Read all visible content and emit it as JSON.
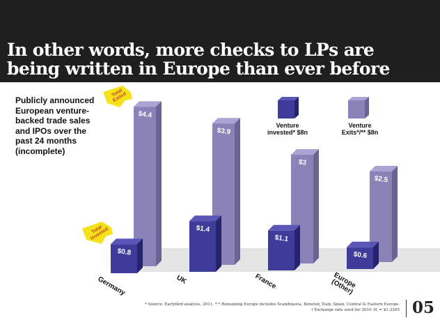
{
  "title": {
    "line1": "In other words, more checks to LPs are",
    "line2": "being written in Europe than ever before"
  },
  "side_text": "Publicly announced European venture-backed trade sales and IPOs over the past 24 months (incomplete)",
  "legend": {
    "invested": "Venture invested* $8n",
    "exits": "Venture Exits*/** $8n"
  },
  "callouts": {
    "total_exited": "Total Exited",
    "total_invested": "Total Invested"
  },
  "footnote": {
    "line1": "* Source: Earlybird analysis, 2011. * * Remaining Europe includes Scandinavia, Benelux, Italy, Spain, Central & Eastern Europe.",
    "line2": "† Exchange rate used for 2010 1€ = $1.3265"
  },
  "page_number": "05",
  "colors": {
    "invested_front": "#3e3b9a",
    "invested_side": "#26236e",
    "invested_top": "#5a56b8",
    "exits_front": "#8b82b8",
    "exits_side": "#6b6394",
    "exits_top": "#aba3d2",
    "callout_yellow": "#f5e21d",
    "header_bg": "#1f1f1f"
  },
  "chart_data": {
    "type": "bar",
    "categories": [
      "Germany",
      "UK",
      "France",
      "Europe (Other)"
    ],
    "series": [
      {
        "name": "Venture invested* $8n",
        "values": [
          0.8,
          1.4,
          1.1,
          0.6
        ],
        "labels": [
          "$0.8",
          "$1.4",
          "$1.1",
          "$0.6"
        ]
      },
      {
        "name": "Venture Exits*/** $8n",
        "values": [
          4.4,
          3.9,
          3.0,
          2.5
        ],
        "labels": [
          "$4.4",
          "$3.9",
          "$3",
          "$2.5"
        ]
      }
    ],
    "ylim": [
      0,
      4.5
    ],
    "grid": false,
    "style": "3d"
  }
}
